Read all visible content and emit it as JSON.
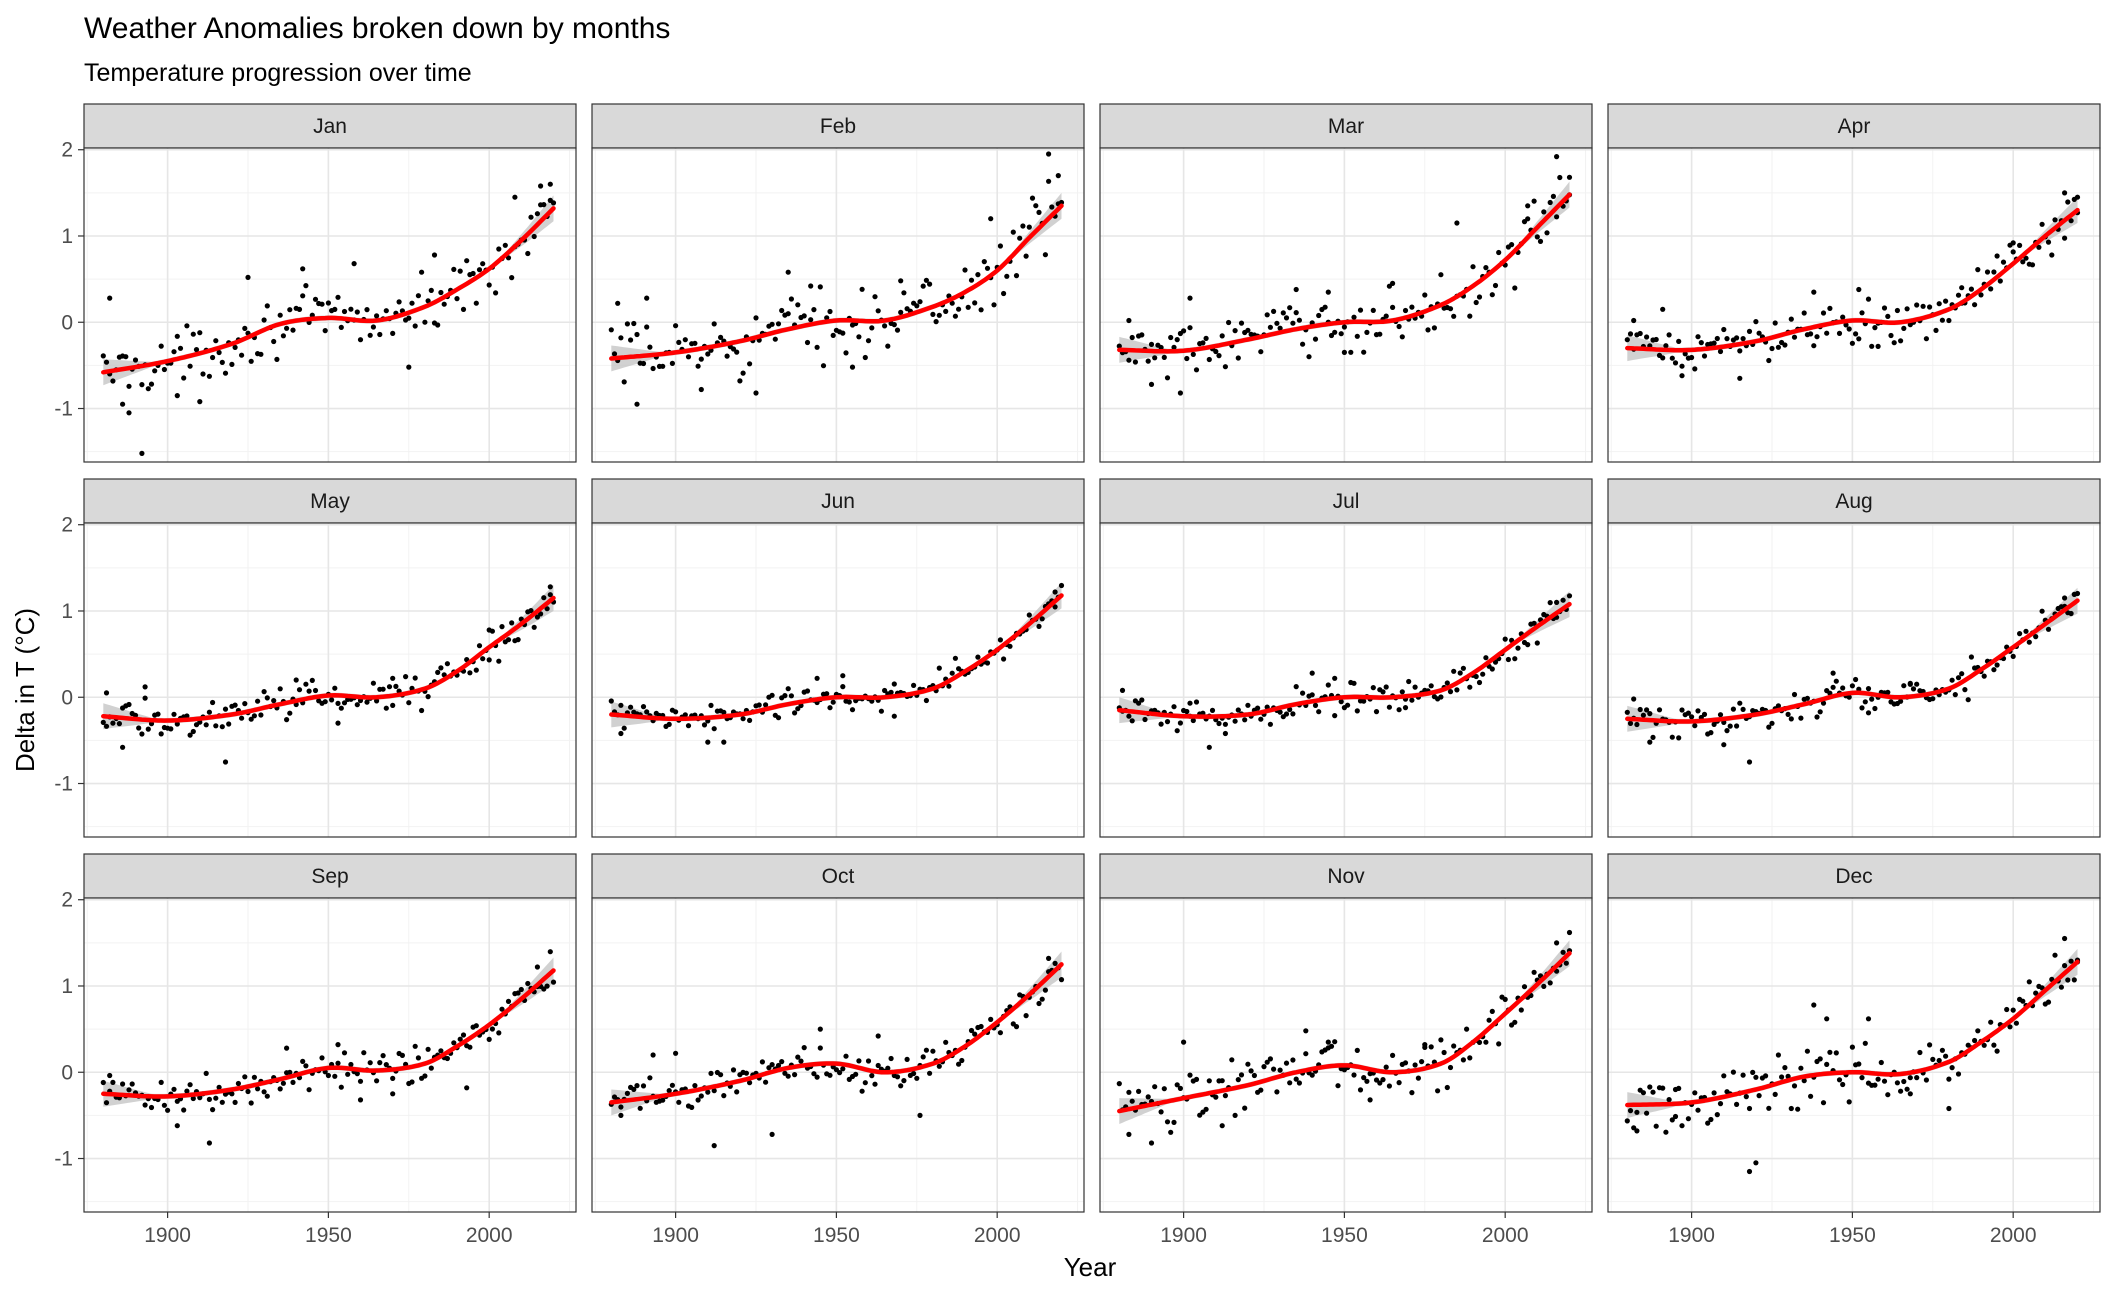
{
  "chart_data": {
    "type": "scatter",
    "title": "Weather Anomalies broken down by months",
    "subtitle": "Temperature progression over time",
    "xlabel": "Year",
    "ylabel": "Delta in T (°C)",
    "xlim": [
      1874,
      2027
    ],
    "ylim": [
      -1.62,
      2.02
    ],
    "x_ticks": [
      1900,
      1950,
      2000
    ],
    "y_ticks": [
      -1,
      0,
      1,
      2
    ],
    "grid": true,
    "point_color": "#000000",
    "smooth_color": "#ff0000",
    "ci_color": "#bebebe",
    "strip_fill": "#d9d9d9",
    "year_range": [
      1880,
      2020
    ],
    "facets": [
      {
        "month": "Jan",
        "trend": [
          [
            1880,
            -0.58
          ],
          [
            1900,
            -0.45
          ],
          [
            1920,
            -0.25
          ],
          [
            1935,
            -0.02
          ],
          [
            1950,
            0.05
          ],
          [
            1965,
            0.02
          ],
          [
            1980,
            0.18
          ],
          [
            1990,
            0.38
          ],
          [
            2000,
            0.62
          ],
          [
            2010,
            0.95
          ],
          [
            2020,
            1.32
          ]
        ],
        "outliers": [
          [
            1882,
            0.28
          ],
          [
            1886,
            -0.95
          ],
          [
            1888,
            -1.05
          ],
          [
            1892,
            -1.52
          ],
          [
            1903,
            -0.85
          ],
          [
            1910,
            -0.92
          ],
          [
            1925,
            0.52
          ],
          [
            1942,
            0.62
          ],
          [
            1958,
            0.68
          ],
          [
            1975,
            -0.52
          ],
          [
            1983,
            0.78
          ],
          [
            2008,
            1.45
          ],
          [
            2016,
            1.58
          ],
          [
            2019,
            1.6
          ]
        ],
        "spread": 0.24
      },
      {
        "month": "Feb",
        "trend": [
          [
            1880,
            -0.42
          ],
          [
            1900,
            -0.35
          ],
          [
            1920,
            -0.22
          ],
          [
            1935,
            -0.08
          ],
          [
            1950,
            0.02
          ],
          [
            1965,
            0.02
          ],
          [
            1980,
            0.18
          ],
          [
            1990,
            0.35
          ],
          [
            2000,
            0.6
          ],
          [
            2010,
            0.98
          ],
          [
            2020,
            1.35
          ]
        ],
        "outliers": [
          [
            1882,
            0.22
          ],
          [
            1891,
            0.28
          ],
          [
            1888,
            -0.95
          ],
          [
            1908,
            -0.78
          ],
          [
            1925,
            -0.82
          ],
          [
            1935,
            0.58
          ],
          [
            1942,
            0.42
          ],
          [
            1955,
            -0.52
          ],
          [
            1970,
            0.48
          ],
          [
            1998,
            1.2
          ],
          [
            2016,
            1.95
          ],
          [
            2019,
            1.7
          ]
        ],
        "spread": 0.3
      },
      {
        "month": "Mar",
        "trend": [
          [
            1880,
            -0.32
          ],
          [
            1900,
            -0.33
          ],
          [
            1920,
            -0.2
          ],
          [
            1935,
            -0.08
          ],
          [
            1950,
            0.0
          ],
          [
            1965,
            0.02
          ],
          [
            1980,
            0.2
          ],
          [
            1990,
            0.42
          ],
          [
            2000,
            0.72
          ],
          [
            2010,
            1.1
          ],
          [
            2020,
            1.48
          ]
        ],
        "outliers": [
          [
            1883,
            0.02
          ],
          [
            1890,
            -0.72
          ],
          [
            1899,
            -0.82
          ],
          [
            1902,
            0.28
          ],
          [
            1935,
            0.38
          ],
          [
            1945,
            0.35
          ],
          [
            1950,
            -0.35
          ],
          [
            1965,
            0.45
          ],
          [
            1985,
            1.15
          ],
          [
            2007,
            1.35
          ],
          [
            2016,
            1.92
          ],
          [
            2020,
            1.68
          ]
        ],
        "spread": 0.25
      },
      {
        "month": "Apr",
        "trend": [
          [
            1880,
            -0.3
          ],
          [
            1900,
            -0.32
          ],
          [
            1920,
            -0.22
          ],
          [
            1935,
            -0.08
          ],
          [
            1950,
            0.02
          ],
          [
            1965,
            0.0
          ],
          [
            1980,
            0.15
          ],
          [
            1990,
            0.38
          ],
          [
            2000,
            0.68
          ],
          [
            2010,
            1.0
          ],
          [
            2020,
            1.3
          ]
        ],
        "outliers": [
          [
            1882,
            0.02
          ],
          [
            1891,
            0.15
          ],
          [
            1897,
            -0.62
          ],
          [
            1915,
            -0.65
          ],
          [
            1938,
            0.35
          ],
          [
            1952,
            0.38
          ],
          [
            1958,
            -0.28
          ],
          [
            1984,
            0.4
          ],
          [
            2000,
            0.92
          ],
          [
            2016,
            1.5
          ],
          [
            2020,
            1.45
          ]
        ],
        "spread": 0.2
      },
      {
        "month": "May",
        "trend": [
          [
            1880,
            -0.22
          ],
          [
            1900,
            -0.27
          ],
          [
            1920,
            -0.2
          ],
          [
            1935,
            -0.08
          ],
          [
            1950,
            0.02
          ],
          [
            1965,
            0.0
          ],
          [
            1980,
            0.1
          ],
          [
            1990,
            0.3
          ],
          [
            2000,
            0.58
          ],
          [
            2010,
            0.85
          ],
          [
            2020,
            1.15
          ]
        ],
        "outliers": [
          [
            1881,
            0.05
          ],
          [
            1886,
            -0.58
          ],
          [
            1893,
            0.12
          ],
          [
            1918,
            -0.75
          ],
          [
            1940,
            0.2
          ],
          [
            1953,
            -0.3
          ],
          [
            1970,
            0.22
          ],
          [
            2000,
            0.78
          ],
          [
            2019,
            1.28
          ]
        ],
        "spread": 0.16
      },
      {
        "month": "Jun",
        "trend": [
          [
            1880,
            -0.2
          ],
          [
            1900,
            -0.25
          ],
          [
            1920,
            -0.2
          ],
          [
            1935,
            -0.08
          ],
          [
            1950,
            0.0
          ],
          [
            1965,
            0.0
          ],
          [
            1980,
            0.1
          ],
          [
            1990,
            0.3
          ],
          [
            2000,
            0.55
          ],
          [
            2010,
            0.85
          ],
          [
            2020,
            1.18
          ]
        ],
        "outliers": [
          [
            1883,
            -0.42
          ],
          [
            1910,
            -0.52
          ],
          [
            1915,
            -0.52
          ],
          [
            1944,
            0.22
          ],
          [
            1952,
            0.25
          ],
          [
            1968,
            -0.22
          ],
          [
            2018,
            1.22
          ]
        ],
        "spread": 0.14
      },
      {
        "month": "Jul",
        "trend": [
          [
            1880,
            -0.15
          ],
          [
            1900,
            -0.22
          ],
          [
            1920,
            -0.2
          ],
          [
            1935,
            -0.08
          ],
          [
            1950,
            0.0
          ],
          [
            1965,
            0.0
          ],
          [
            1980,
            0.08
          ],
          [
            1990,
            0.28
          ],
          [
            2000,
            0.55
          ],
          [
            2010,
            0.82
          ],
          [
            2020,
            1.08
          ]
        ],
        "outliers": [
          [
            1881,
            0.08
          ],
          [
            1902,
            -0.22
          ],
          [
            1908,
            -0.58
          ],
          [
            1913,
            -0.42
          ],
          [
            1940,
            0.28
          ],
          [
            1947,
            0.22
          ],
          [
            1969,
            -0.12
          ],
          [
            2016,
            1.1
          ]
        ],
        "spread": 0.14
      },
      {
        "month": "Aug",
        "trend": [
          [
            1880,
            -0.25
          ],
          [
            1900,
            -0.28
          ],
          [
            1920,
            -0.2
          ],
          [
            1935,
            -0.08
          ],
          [
            1950,
            0.05
          ],
          [
            1965,
            0.0
          ],
          [
            1980,
            0.1
          ],
          [
            1990,
            0.32
          ],
          [
            2000,
            0.58
          ],
          [
            2010,
            0.85
          ],
          [
            2020,
            1.12
          ]
        ],
        "outliers": [
          [
            1882,
            -0.02
          ],
          [
            1887,
            -0.52
          ],
          [
            1910,
            -0.55
          ],
          [
            1918,
            -0.75
          ],
          [
            1944,
            0.28
          ],
          [
            1955,
            -0.18
          ],
          [
            1968,
            0.15
          ],
          [
            2016,
            1.15
          ]
        ],
        "spread": 0.15
      },
      {
        "month": "Sep",
        "trend": [
          [
            1880,
            -0.25
          ],
          [
            1900,
            -0.28
          ],
          [
            1920,
            -0.2
          ],
          [
            1935,
            -0.08
          ],
          [
            1950,
            0.05
          ],
          [
            1965,
            0.02
          ],
          [
            1980,
            0.1
          ],
          [
            1990,
            0.3
          ],
          [
            2000,
            0.55
          ],
          [
            2010,
            0.85
          ],
          [
            2020,
            1.18
          ]
        ],
        "outliers": [
          [
            1882,
            -0.22
          ],
          [
            1903,
            -0.62
          ],
          [
            1913,
            -0.82
          ],
          [
            1937,
            0.28
          ],
          [
            1953,
            0.32
          ],
          [
            1960,
            -0.32
          ],
          [
            1970,
            -0.25
          ],
          [
            1993,
            -0.18
          ],
          [
            2015,
            1.22
          ]
        ],
        "spread": 0.16
      },
      {
        "month": "Oct",
        "trend": [
          [
            1880,
            -0.35
          ],
          [
            1900,
            -0.25
          ],
          [
            1920,
            -0.1
          ],
          [
            1935,
            0.05
          ],
          [
            1950,
            0.1
          ],
          [
            1965,
            0.0
          ],
          [
            1980,
            0.1
          ],
          [
            1990,
            0.3
          ],
          [
            2000,
            0.58
          ],
          [
            2010,
            0.9
          ],
          [
            2020,
            1.25
          ]
        ],
        "outliers": [
          [
            1883,
            -0.5
          ],
          [
            1893,
            0.2
          ],
          [
            1900,
            0.22
          ],
          [
            1912,
            -0.85
          ],
          [
            1930,
            -0.72
          ],
          [
            1945,
            0.5
          ],
          [
            1963,
            0.42
          ],
          [
            1976,
            -0.5
          ],
          [
            2016,
            1.32
          ]
        ],
        "spread": 0.18
      },
      {
        "month": "Nov",
        "trend": [
          [
            1880,
            -0.45
          ],
          [
            1900,
            -0.3
          ],
          [
            1920,
            -0.15
          ],
          [
            1935,
            0.0
          ],
          [
            1950,
            0.08
          ],
          [
            1965,
            0.0
          ],
          [
            1980,
            0.1
          ],
          [
            1990,
            0.35
          ],
          [
            2000,
            0.68
          ],
          [
            2010,
            1.02
          ],
          [
            2020,
            1.38
          ]
        ],
        "outliers": [
          [
            1883,
            -0.72
          ],
          [
            1890,
            -0.82
          ],
          [
            1900,
            0.35
          ],
          [
            1912,
            -0.62
          ],
          [
            1938,
            0.48
          ],
          [
            1945,
            0.35
          ],
          [
            1958,
            -0.32
          ],
          [
            1975,
            0.32
          ],
          [
            2016,
            1.5
          ],
          [
            2020,
            1.62
          ]
        ],
        "spread": 0.22
      },
      {
        "month": "Dec",
        "trend": [
          [
            1880,
            -0.38
          ],
          [
            1900,
            -0.35
          ],
          [
            1920,
            -0.2
          ],
          [
            1935,
            -0.05
          ],
          [
            1950,
            0.0
          ],
          [
            1965,
            -0.02
          ],
          [
            1980,
            0.12
          ],
          [
            1990,
            0.35
          ],
          [
            2000,
            0.62
          ],
          [
            2010,
            0.95
          ],
          [
            2020,
            1.28
          ]
        ],
        "outliers": [
          [
            1883,
            -0.68
          ],
          [
            1895,
            -0.2
          ],
          [
            1918,
            -1.15
          ],
          [
            1920,
            -1.05
          ],
          [
            1938,
            0.78
          ],
          [
            1942,
            0.62
          ],
          [
            1955,
            0.62
          ],
          [
            1968,
            -0.25
          ],
          [
            1980,
            -0.42
          ],
          [
            2016,
            1.55
          ],
          [
            2020,
            1.3
          ]
        ],
        "spread": 0.25
      }
    ]
  }
}
